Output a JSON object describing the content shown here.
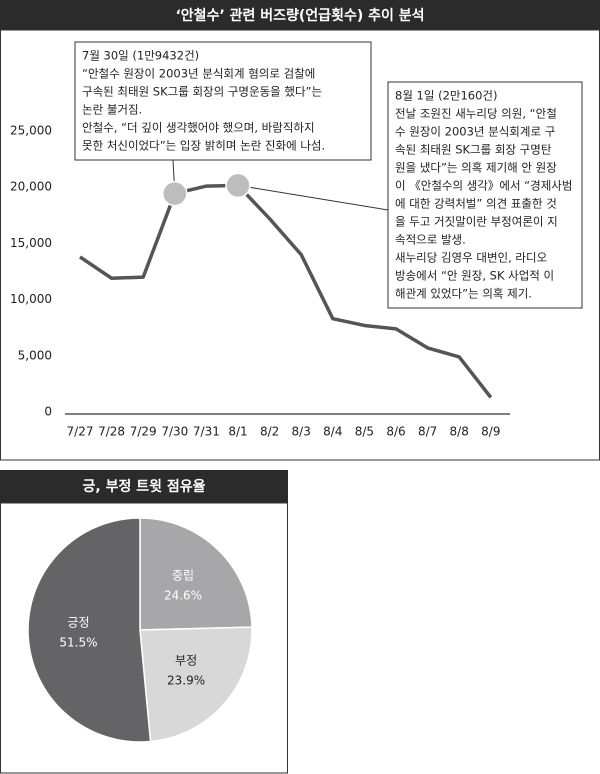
{
  "chart_data": [
    {
      "type": "line",
      "title": "‘안철수’ 관련 버즈량(언급횟수) 추이 분석",
      "categories": [
        "7/27",
        "7/28",
        "7/29",
        "7/30",
        "7/31",
        "8/1",
        "8/2",
        "8/3",
        "8/4",
        "8/5",
        "8/6",
        "8/7",
        "8/8",
        "8/9"
      ],
      "values": [
        13800,
        11900,
        12000,
        19432,
        20100,
        20160,
        17200,
        14000,
        8300,
        7700,
        7400,
        5700,
        4900,
        1300
      ],
      "color": "#555555",
      "highlight_color": "#bdbdbd",
      "ylim": [
        0,
        25000
      ],
      "yticks": [
        0,
        {
          "value": 5000,
          "label": "5,000"
        },
        {
          "value": 10000,
          "label": "10,000"
        },
        {
          "value": 15000,
          "label": "15,000"
        },
        {
          "value": 20000,
          "label": "20,000"
        },
        {
          "value": 25000,
          "label": "25,000"
        }
      ],
      "grid": false,
      "annotations": [
        {
          "lines": [
            "7월 30일 (1만9432건)",
            "“안철수 원장이 2003년 분식회계 혐의로 검찰에",
            "구속된 최태원 SK그룹 회장의 구명운동을 했다”는",
            "논란 불거짐.",
            "안철수, “더 깊이 생각했어야 했으며, 바람직하지",
            "못한 처신이었다”는 입장 밝히며 논란 진화에 나섬."
          ]
        },
        {
          "lines": [
            "8월 1일 (2만160건)",
            "전날 조원진 새누리당 의원, “안철",
            "수 원장이 2003년 분식회계로 구",
            "속된 최태원 SK그룹 회장 구명탄",
            "원을 냈다”는 의혹 제기해 안 원장",
            "이 《안철수의 생각》에서 “경제사범",
            "에 대한 강력처벌” 의견 표출한 것",
            "을 두고 거짓말이란 부정여론이 지",
            "속적으로 발생.",
            "새누리당 김영우 대변인, 라디오",
            "방송에서 “안 원장, SK 사업적 이",
            "해관계 있었다”는 의혹 제기."
          ]
        }
      ]
    },
    {
      "type": "pie",
      "title": "긍, 부정 트윗 점유율",
      "categories": [
        "중립",
        "부정",
        "긍정"
      ],
      "values": [
        24.6,
        23.9,
        51.5
      ],
      "value_labels": [
        "24.6%",
        "23.9%",
        "51.5%"
      ],
      "colors": [
        "#a7a7a9",
        "#d8d8d8",
        "#646467"
      ]
    }
  ]
}
